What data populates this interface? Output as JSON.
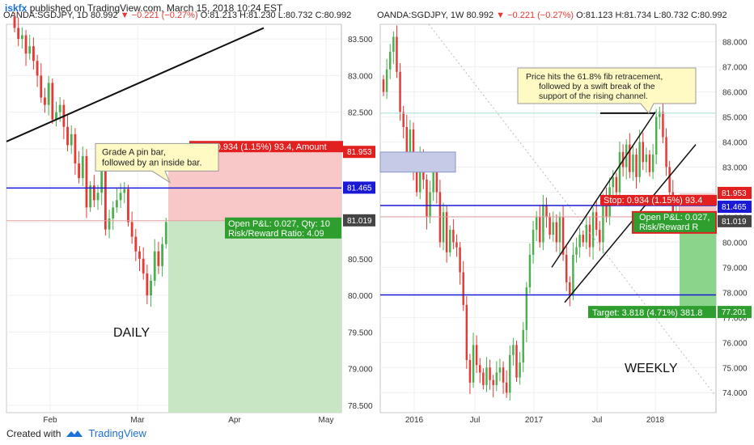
{
  "header": {
    "user": "iskfx",
    "published": "published on TradingView.com, March 15, 2018 10:24 EST"
  },
  "footer": {
    "created_with": "Created with",
    "brand": "TradingView"
  },
  "colors": {
    "up": "#4caf50",
    "down": "#e53935",
    "blue_line": "#1a1ad6",
    "stop_zone": "#f8c8c8",
    "target_zone": "#c8e6c4",
    "box": "#c5cbe6",
    "green_label": "#2e9e2e",
    "red_label": "#e32020",
    "price_tag": "#444444"
  },
  "chart_data": [
    {
      "type": "candlestick",
      "symbol_line": {
        "symbol": "OANDA:SGDJPY, 1D",
        "last": "80.992",
        "change": "−0.221 (−0.27%)",
        "ohlc": "O:81.213 H:81.230 L:80.732 C:80.992"
      },
      "y_ticks": [
        "83.500",
        "83.000",
        "82.500",
        "82.000",
        "81.500",
        "81.000",
        "80.500",
        "80.000",
        "79.500",
        "79.000",
        "78.500"
      ],
      "x_ticks": [
        "Feb",
        "Mar",
        "Apr",
        "May"
      ],
      "ylim": [
        78.4,
        83.7
      ],
      "hline_price": 81.465,
      "current_price": 81.019,
      "stop_price": 81.953,
      "price_tags": [
        "81.953",
        "81.465",
        "81.019"
      ],
      "stop_label": "Stop: 0.934 (1.15%) 93.4, Amount",
      "pnl_label": "Open P&L: 0.027, Qty: 10",
      "rr_label": "Risk/Reward Ratio: 4.09",
      "callout": "Grade A pin bar, followed by an inside bar.",
      "watermark": "DAILY",
      "closes": [
        83.65,
        83.5,
        83.55,
        83.3,
        83.4,
        83.2,
        83.0,
        82.7,
        82.6,
        82.9,
        82.4,
        82.5,
        82.6,
        82.3,
        82.05,
        82.2,
        81.8,
        81.6,
        81.9,
        81.2,
        81.5,
        81.3,
        81.4,
        81.7,
        80.9,
        81.05,
        81.2,
        81.3,
        81.4,
        81.45,
        81.0,
        80.8,
        80.6,
        80.5,
        80.3,
        80.0,
        80.2,
        80.6,
        80.4,
        80.7,
        81.0,
        81.15,
        81.2,
        81.05,
        81.0
      ]
    },
    {
      "type": "candlestick",
      "symbol_line": {
        "symbol": "OANDA:SGDJPY, 1W",
        "last": "80.992",
        "change": "−0.221 (−0.27%)",
        "ohlc": "O:81.123 H:81.734 L:80.732 C:80.992"
      },
      "y_ticks": [
        "88.000",
        "87.000",
        "86.000",
        "85.000",
        "84.000",
        "83.000",
        "82.000",
        "81.000",
        "80.000",
        "79.000",
        "78.000",
        "77.000",
        "76.000",
        "75.000",
        "74.000"
      ],
      "x_ticks": [
        "2016",
        "Jul",
        "2017",
        "Jul",
        "2018"
      ],
      "ylim": [
        73.2,
        88.7
      ],
      "hline_price": 81.465,
      "support_price": 77.9,
      "current_price": 81.019,
      "stop_price": 81.953,
      "target_price": 77.201,
      "fib_price": 85.15,
      "price_tags": [
        "81.953",
        "81.465",
        "81.019",
        "77.201"
      ],
      "stop_label": "Stop: 0.934 (1.15%) 93.4",
      "pnl_label": "Open P&L: 0.027,",
      "rr_label": "Risk/Reward R",
      "target_label": "Target: 3.818 (4.71%) 381.8",
      "callout": "Price hits the 61.8% fib retracement, followed by a swift break of the support of the rising channel.",
      "watermark": "WEEKLY",
      "closes": [
        86.0,
        86.9,
        87.6,
        88.2,
        86.8,
        85.2,
        84.6,
        83.6,
        84.5,
        82.9,
        82.0,
        83.4,
        82.5,
        81.0,
        82.0,
        83.0,
        82.0,
        80.0,
        81.2,
        79.6,
        80.5,
        80.0,
        79.8,
        78.8,
        77.5,
        75.3,
        74.4,
        75.9,
        75.1,
        74.8,
        74.3,
        75.0,
        74.5,
        74.3,
        74.8,
        75.0,
        74.4,
        74.0,
        75.5,
        75.9,
        74.6,
        75.2,
        76.5,
        78.2,
        79.5,
        80.5,
        81.0,
        80.0,
        81.5,
        81.0,
        80.3,
        80.8,
        80.0,
        81.0,
        79.5,
        78.4,
        77.9,
        79.5,
        79.8,
        80.3,
        80.0,
        80.7,
        79.8,
        81.2,
        80.5,
        80.0,
        81.7,
        81.0,
        82.2,
        82.6,
        82.0,
        83.6,
        83.0,
        83.9,
        82.8,
        83.5,
        82.6,
        84.0,
        83.2,
        83.5,
        82.8,
        83.5,
        85.0,
        85.2,
        84.2,
        83.0,
        82.0,
        80.8,
        81.2,
        81.0
      ]
    }
  ]
}
